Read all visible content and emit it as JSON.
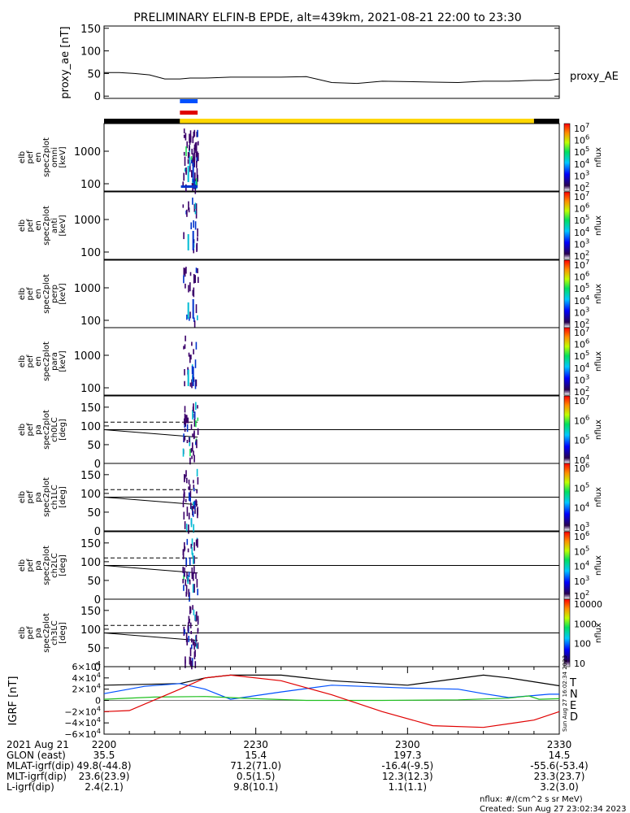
{
  "title": "PRELIMINARY ELFIN-B EPDE, alt=439km, 2021-08-21 22:00 to 23:30",
  "time_range": {
    "start_min": 0,
    "end_min": 90
  },
  "colors": {
    "black": "#000000",
    "blue": "#0050ff",
    "red": "#e00000",
    "green": "#20c020",
    "yellow": "#ffd700",
    "spec_purple": "#3a006a",
    "spec_cyan": "#00bcd4",
    "spec_blue": "#0033cc",
    "spec_green": "#22dd55"
  },
  "chart_data": [
    {
      "id": "proxy_ae",
      "type": "line",
      "ylabel": "proxy_ae [nT]",
      "legend": "proxy_AE",
      "yticks": [
        "150",
        "100",
        "50",
        "0"
      ],
      "ylim": [
        -5,
        155
      ],
      "x": [
        0,
        3,
        6,
        9,
        12,
        15,
        17,
        20,
        25,
        30,
        35,
        40,
        42,
        45,
        50,
        55,
        60,
        65,
        70,
        75,
        80,
        85,
        88,
        90
      ],
      "values": [
        52,
        52,
        50,
        47,
        38,
        38,
        40,
        40,
        42,
        42,
        42,
        43,
        38,
        30,
        28,
        33,
        32,
        31,
        30,
        33,
        33,
        35,
        35,
        38
      ]
    },
    {
      "id": "status_bars",
      "type": "table",
      "bars": [
        {
          "color": "blue",
          "x": [
            15,
            18.5
          ]
        },
        {
          "color": "red",
          "x": [
            15,
            18.5
          ]
        },
        {
          "color": "black",
          "x": [
            0,
            15
          ]
        },
        {
          "color": "yellow",
          "x": [
            15,
            85
          ]
        },
        {
          "color": "black",
          "x": [
            85,
            90
          ]
        }
      ]
    },
    {
      "id": "spectrograms",
      "type": "heatmap",
      "panels": [
        {
          "id": "omni",
          "label_lines": [
            "elb",
            "pef",
            "en",
            "spec2plot",
            "omni",
            "[keV]"
          ],
          "yticks": [
            "1000",
            "100"
          ],
          "cbar_ticks": [
            "10^7",
            "10^6",
            "10^5",
            "10^4",
            "10^3",
            "10^2"
          ],
          "cbar_label": "nflux"
        },
        {
          "id": "anti",
          "label_lines": [
            "elb",
            "pef",
            "en",
            "spec2plot",
            "anti",
            "[keV]"
          ],
          "yticks": [
            "1000",
            "100"
          ],
          "cbar_ticks": [
            "10^7",
            "10^6",
            "10^5",
            "10^4",
            "10^3",
            "10^2"
          ],
          "cbar_label": "nflux"
        },
        {
          "id": "perp",
          "label_lines": [
            "elb",
            "pef",
            "en",
            "spec2plot",
            "perp",
            "[keV]"
          ],
          "yticks": [
            "1000",
            "100"
          ],
          "cbar_ticks": [
            "10^7",
            "10^6",
            "10^5",
            "10^4",
            "10^3",
            "10^2"
          ],
          "cbar_label": "nflux"
        },
        {
          "id": "para",
          "label_lines": [
            "elb",
            "pef",
            "en",
            "spec2plot",
            "para",
            "[keV]"
          ],
          "yticks": [
            "1000",
            "100"
          ],
          "cbar_ticks": [
            "10^7",
            "10^6",
            "10^5",
            "10^4",
            "10^3",
            "10^2"
          ],
          "cbar_label": "nflux"
        },
        {
          "id": "ch0LC",
          "label_lines": [
            "elb",
            "pef",
            "pa",
            "spec2plot",
            "ch0LC",
            "[deg]"
          ],
          "yticks": [
            "150",
            "100",
            "50",
            "0"
          ],
          "cbar_ticks": [
            "10^7",
            "10^6",
            "10^5",
            "10^4"
          ],
          "cbar_label": "nflux"
        },
        {
          "id": "ch1LC",
          "label_lines": [
            "elb",
            "pef",
            "pa",
            "spec2plot",
            "ch1LC",
            "[deg]"
          ],
          "yticks": [
            "150",
            "100",
            "50",
            "0"
          ],
          "cbar_ticks": [
            "10^6",
            "10^5",
            "10^4",
            "10^3"
          ],
          "cbar_label": "nflux"
        },
        {
          "id": "ch2LC",
          "label_lines": [
            "elb",
            "pef",
            "pa",
            "spec2plot",
            "ch2LC",
            "[deg]"
          ],
          "yticks": [
            "150",
            "100",
            "50",
            "0"
          ],
          "cbar_ticks": [
            "10^6",
            "10^5",
            "10^4",
            "10^3",
            "10^2"
          ],
          "cbar_label": "nflux"
        },
        {
          "id": "ch3LC",
          "label_lines": [
            "elb",
            "pef",
            "pa",
            "spec2plot",
            "ch3LC",
            "[deg]"
          ],
          "yticks": [
            "150",
            "100",
            "50",
            "0"
          ],
          "cbar_ticks": [
            "10000",
            "1000",
            "100",
            "10"
          ],
          "cbar_label": "nflux"
        }
      ],
      "pa_lines": {
        "solid": {
          "x": [
            0,
            18.5
          ],
          "y": [
            90,
            70
          ]
        },
        "dashed_y": 110,
        "solid_flat_y": 90
      }
    },
    {
      "id": "igrf",
      "type": "line",
      "ylabel": "IGRF [nT]",
      "yticks": [
        "6×10^4",
        "4×10^4",
        "2×10^4",
        "0",
        "−2×10^4",
        "−4×10^4",
        "−6×10^4"
      ],
      "ylim": [
        -60000,
        60000
      ],
      "series": [
        {
          "name": "T",
          "color": "black",
          "x": [
            0,
            15,
            20,
            25,
            35,
            45,
            60,
            75,
            80,
            90
          ],
          "values": [
            27000,
            30000,
            40000,
            45000,
            45000,
            35000,
            27000,
            45000,
            40000,
            26000
          ]
        },
        {
          "name": "N",
          "color": "blue",
          "x": [
            0,
            8,
            15,
            20,
            25,
            35,
            45,
            60,
            70,
            75,
            80,
            84,
            88,
            90
          ],
          "values": [
            12000,
            25000,
            30000,
            20000,
            2000,
            15000,
            27000,
            22000,
            20000,
            12000,
            5000,
            8000,
            11000,
            11000
          ]
        },
        {
          "name": "E",
          "color": "green",
          "x": [
            0,
            10,
            20,
            30,
            40,
            55,
            70,
            80,
            84,
            86,
            90
          ],
          "values": [
            2000,
            6000,
            7000,
            3000,
            0,
            0,
            1000,
            4000,
            8000,
            2000,
            3000
          ]
        },
        {
          "name": "D",
          "color": "red",
          "x": [
            0,
            5,
            15,
            20,
            25,
            35,
            45,
            55,
            65,
            75,
            85,
            90
          ],
          "values": [
            -20000,
            -18000,
            20000,
            40000,
            45000,
            35000,
            10000,
            -20000,
            -45000,
            -48000,
            -35000,
            -20000
          ]
        }
      ]
    }
  ],
  "xaxis": {
    "row_labels": [
      "2021 Aug 21",
      "GLON (east)",
      "MLAT-igrf(dip)",
      "MLT-igrf(dip)",
      "L-igrf(dip)"
    ],
    "columns": [
      {
        "min": 0,
        "values": [
          "2200",
          "35.5",
          "49.8(-44.8)",
          "23.6(23.9)",
          "2.4(2.1)"
        ]
      },
      {
        "min": 30,
        "values": [
          "2230",
          "15.4",
          "71.2(71.0)",
          "0.5(1.5)",
          "9.8(10.1)"
        ]
      },
      {
        "min": 60,
        "values": [
          "2300",
          "197.3",
          "-16.4(-9.5)",
          "12.3(12.3)",
          "1.1(1.1)"
        ]
      },
      {
        "min": 90,
        "values": [
          "2330",
          "14.5",
          "-55.6(-53.4)",
          "23.3(23.7)",
          "3.2(3.0)"
        ]
      }
    ]
  },
  "footer": {
    "units": "nflux: #/(cm^2 s sr MeV)",
    "created": "Created: Sun Aug 27 23:02:34 2023",
    "rotated_stamp": "Sun Aug 27 16:02:34 2023"
  }
}
